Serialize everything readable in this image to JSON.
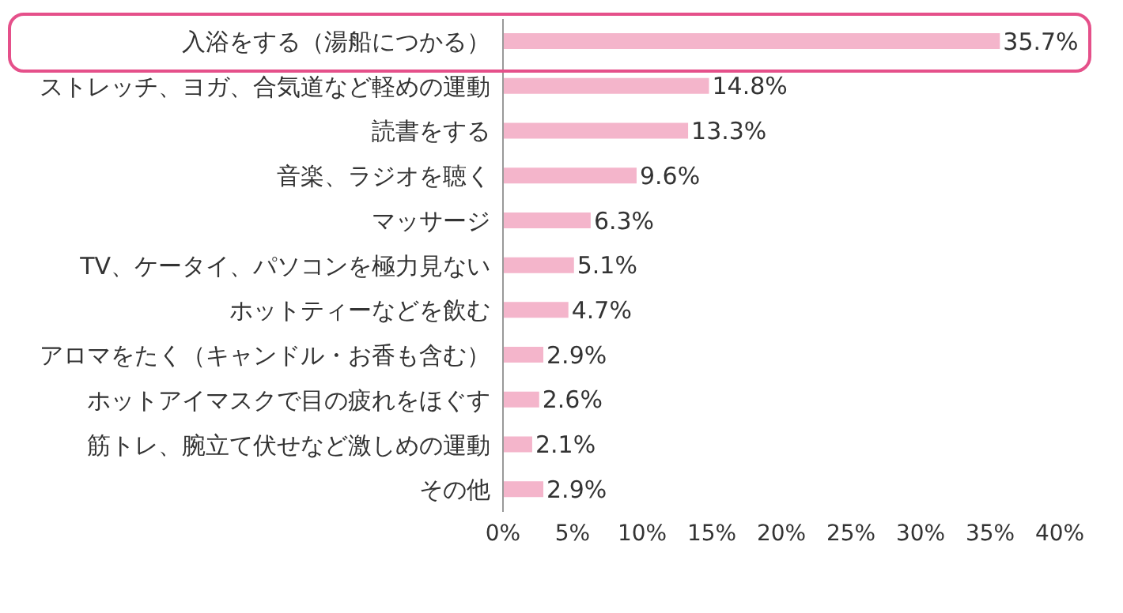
{
  "chart_data": {
    "type": "bar",
    "orientation": "horizontal",
    "categories": [
      "入浴をする（湯船につかる）",
      "ストレッチ、ヨガ、合気道など軽めの運動",
      "読書をする",
      "音楽、ラジオを聴く",
      "マッサージ",
      "TV、ケータイ、パソコンを極力見ない",
      "ホットティーなどを飲む",
      "アロマをたく（キャンドル・お香も含む）",
      "ホットアイマスクで目の疲れをほぐす",
      "筋トレ、腕立て伏せなど激しめの運動",
      "その他"
    ],
    "values": [
      35.7,
      14.8,
      13.3,
      9.6,
      6.3,
      5.1,
      4.7,
      2.9,
      2.6,
      2.1,
      2.9
    ],
    "value_labels": [
      "35.7%",
      "14.8%",
      "13.3%",
      "9.6%",
      "6.3%",
      "5.1%",
      "4.7%",
      "2.9%",
      "2.6%",
      "2.1%",
      "2.9%"
    ],
    "color": "#f4b5cb",
    "xlim": [
      0,
      40
    ],
    "xticks": [
      {
        "value": 0,
        "label": "0%"
      },
      {
        "value": 5,
        "label": "5%"
      },
      {
        "value": 10,
        "label": "10%"
      },
      {
        "value": 15,
        "label": "15%"
      },
      {
        "value": 20,
        "label": "20%"
      },
      {
        "value": 25,
        "label": "25%"
      },
      {
        "value": 30,
        "label": "30%"
      },
      {
        "value": 35,
        "label": "35%"
      },
      {
        "value": 40,
        "label": "40%"
      }
    ],
    "grid": false
  }
}
